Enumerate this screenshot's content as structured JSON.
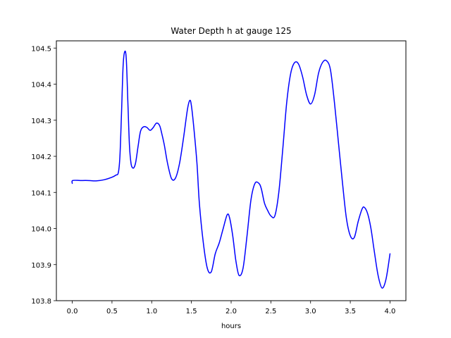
{
  "chart_data": {
    "type": "line",
    "title": "Water Depth h at gauge 125",
    "xlabel": "hours",
    "ylabel": "",
    "xlim": [
      -0.2,
      4.2
    ],
    "ylim": [
      103.8,
      104.52
    ],
    "xticks": [
      0.0,
      0.5,
      1.0,
      1.5,
      2.0,
      2.5,
      3.0,
      3.5,
      4.0
    ],
    "xtick_labels": [
      "0.0",
      "0.5",
      "1.0",
      "1.5",
      "2.0",
      "2.5",
      "3.0",
      "3.5",
      "4.0"
    ],
    "yticks": [
      103.8,
      103.9,
      104.0,
      104.1,
      104.2,
      104.3,
      104.4,
      104.5
    ],
    "ytick_labels": [
      "103.8",
      "103.9",
      "104.0",
      "104.1",
      "104.2",
      "104.3",
      "104.4",
      "104.5"
    ],
    "grid": false,
    "series": [
      {
        "color": "#0000ff",
        "x": [
          0.0,
          0.005,
          0.1,
          0.2,
          0.3,
          0.4,
          0.5,
          0.55,
          0.58,
          0.6,
          0.62,
          0.64,
          0.66,
          0.68,
          0.7,
          0.72,
          0.74,
          0.76,
          0.78,
          0.8,
          0.83,
          0.86,
          0.9,
          0.94,
          0.98,
          1.02,
          1.06,
          1.1,
          1.13,
          1.16,
          1.2,
          1.25,
          1.3,
          1.35,
          1.4,
          1.45,
          1.48,
          1.5,
          1.53,
          1.57,
          1.6,
          1.65,
          1.7,
          1.75,
          1.8,
          1.85,
          1.9,
          1.95,
          1.98,
          2.02,
          2.06,
          2.1,
          2.15,
          2.2,
          2.25,
          2.3,
          2.35,
          2.38,
          2.42,
          2.46,
          2.5,
          2.55,
          2.6,
          2.65,
          2.7,
          2.75,
          2.8,
          2.85,
          2.9,
          2.95,
          3.0,
          3.05,
          3.1,
          3.15,
          3.2,
          3.25,
          3.3,
          3.35,
          3.4,
          3.45,
          3.5,
          3.55,
          3.6,
          3.65,
          3.68,
          3.72,
          3.76,
          3.8,
          3.85,
          3.9,
          3.95,
          4.0
        ],
        "y": [
          104.125,
          104.133,
          104.133,
          104.133,
          104.132,
          104.135,
          104.142,
          104.148,
          104.155,
          104.2,
          104.32,
          104.45,
          104.49,
          104.47,
          104.35,
          104.23,
          104.18,
          104.168,
          104.17,
          104.185,
          104.23,
          104.27,
          104.282,
          104.28,
          104.272,
          104.28,
          104.292,
          104.285,
          104.26,
          104.23,
          104.18,
          104.138,
          104.14,
          104.18,
          104.25,
          104.33,
          104.355,
          104.34,
          104.28,
          104.18,
          104.07,
          103.96,
          103.89,
          103.88,
          103.93,
          103.96,
          104.0,
          104.038,
          104.03,
          103.98,
          103.91,
          103.87,
          103.89,
          103.98,
          104.08,
          104.125,
          104.125,
          104.11,
          104.07,
          104.05,
          104.035,
          104.035,
          104.1,
          104.22,
          104.35,
          104.43,
          104.46,
          104.455,
          104.42,
          104.37,
          104.345,
          104.37,
          104.43,
          104.46,
          104.465,
          104.44,
          104.35,
          104.24,
          104.13,
          104.03,
          103.98,
          103.975,
          104.02,
          104.055,
          104.058,
          104.04,
          104.0,
          103.94,
          103.87,
          103.835,
          103.86,
          103.93
        ]
      }
    ]
  }
}
